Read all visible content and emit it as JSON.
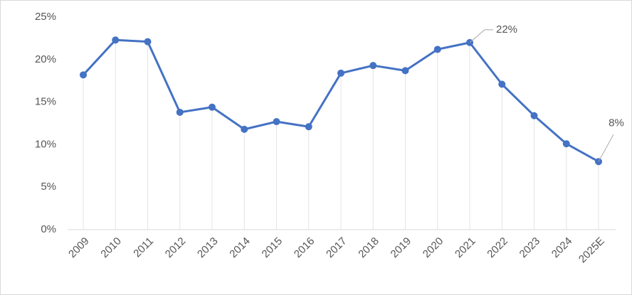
{
  "chart_data": {
    "type": "line",
    "categories": [
      "2009",
      "2010",
      "2011",
      "2012",
      "2013",
      "2014",
      "2015",
      "2016",
      "2017",
      "2018",
      "2019",
      "2020",
      "2021",
      "2022",
      "2023",
      "2024",
      "2025E"
    ],
    "series": [
      {
        "color": "#4472c4",
        "values": [
          18.2,
          22.3,
          22.1,
          13.8,
          14.4,
          11.8,
          12.7,
          12.1,
          18.4,
          19.3,
          18.7,
          21.2,
          22.0,
          17.1,
          13.4,
          10.1,
          8.0
        ],
        "value_labels": [
          null,
          null,
          null,
          null,
          null,
          null,
          null,
          null,
          null,
          null,
          null,
          null,
          "22%",
          null,
          null,
          null,
          "8%"
        ]
      }
    ],
    "ylim": [
      0,
      25
    ],
    "yticks": [
      {
        "value": 0,
        "label": "0%"
      },
      {
        "value": 5,
        "label": "5%"
      },
      {
        "value": 10,
        "label": "10%"
      },
      {
        "value": 15,
        "label": "15%"
      },
      {
        "value": 20,
        "label": "20%"
      },
      {
        "value": 25,
        "label": "25%"
      }
    ],
    "drop_lines": true
  }
}
